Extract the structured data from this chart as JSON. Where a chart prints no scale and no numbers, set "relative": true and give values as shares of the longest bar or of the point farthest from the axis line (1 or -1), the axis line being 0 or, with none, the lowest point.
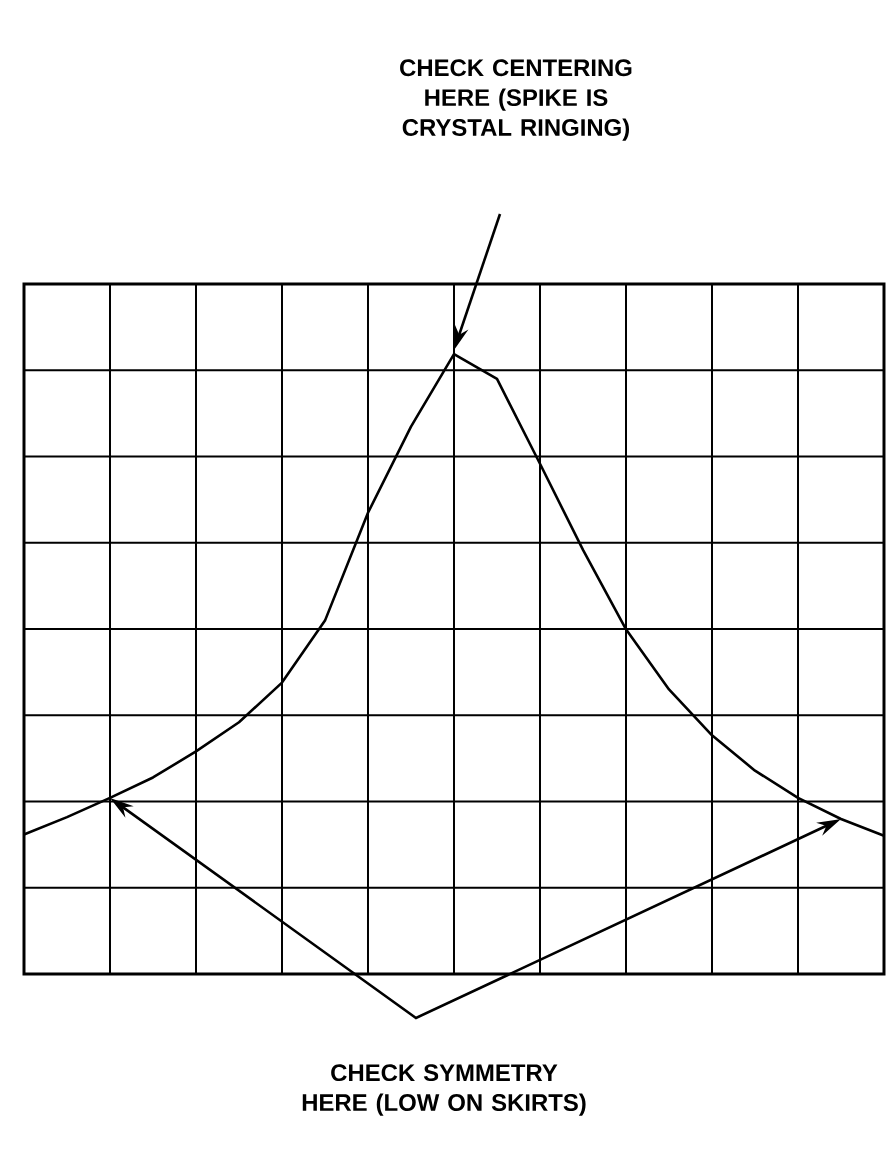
{
  "chart_data": {
    "type": "line",
    "relative": true,
    "grid": true,
    "color": "#000000",
    "marker": "none",
    "line_style": "solid",
    "categories": [
      null,
      null,
      null,
      null,
      null,
      null,
      null,
      null,
      null,
      null,
      null,
      null,
      null,
      null,
      null,
      null,
      null,
      null,
      null,
      null,
      null
    ],
    "values": [
      0.225,
      0.253,
      0.284,
      0.317,
      0.359,
      0.406,
      0.47,
      0.57,
      0.744,
      0.883,
      1,
      0.96,
      0.823,
      0.684,
      0.556,
      0.459,
      0.385,
      0.328,
      0.284,
      0.25,
      0.223
    ],
    "annotations": [
      "CHECK CENTERING HERE (SPIKE IS CRYSTAL RINGING)",
      "CHECK SYMMETRY HERE (LOW ON SKIRTS)"
    ]
  }
}
